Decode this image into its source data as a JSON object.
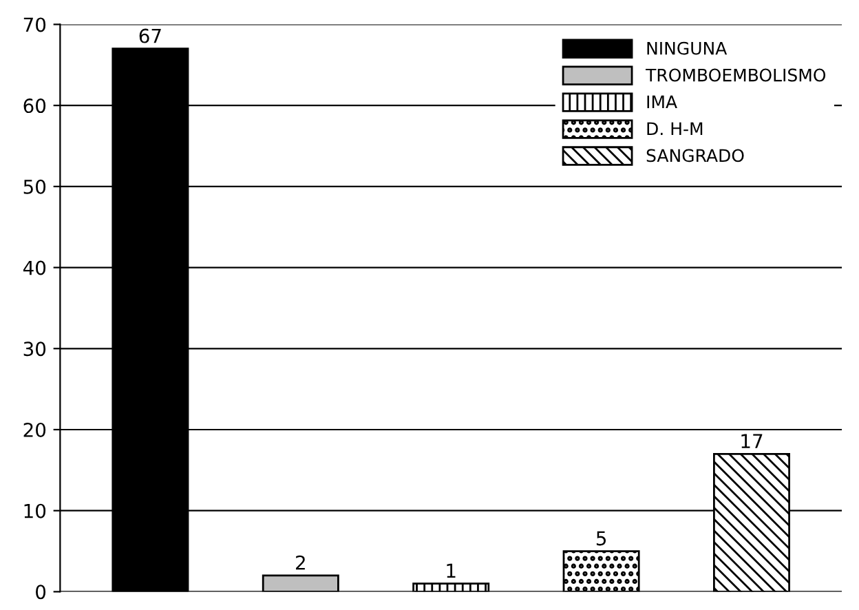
{
  "chart_data": {
    "type": "bar",
    "categories": [
      null,
      null,
      null,
      null,
      null
    ],
    "series": [
      {
        "name": "NINGUNA",
        "color": "#000000",
        "values": [
          67,
          null,
          null,
          null,
          null
        ]
      },
      {
        "name": "TROMBOEMBOLISMO",
        "color": "#bfbfbf",
        "values": [
          null,
          2,
          null,
          null,
          null
        ]
      },
      {
        "name": "IMA",
        "color": "#000000",
        "values": [
          null,
          null,
          1,
          null,
          null
        ]
      },
      {
        "name": "D. H-M",
        "color": "#000000",
        "values": [
          null,
          null,
          null,
          5,
          null
        ]
      },
      {
        "name": "SANGRADO",
        "color": "#000000",
        "values": [
          null,
          null,
          null,
          null,
          17
        ]
      }
    ],
    "ylim": [
      0,
      70
    ],
    "yticks": [
      0,
      10,
      20,
      30,
      40,
      50,
      60,
      70
    ],
    "grid": "y",
    "legend": "top right",
    "data_labels": true
  }
}
